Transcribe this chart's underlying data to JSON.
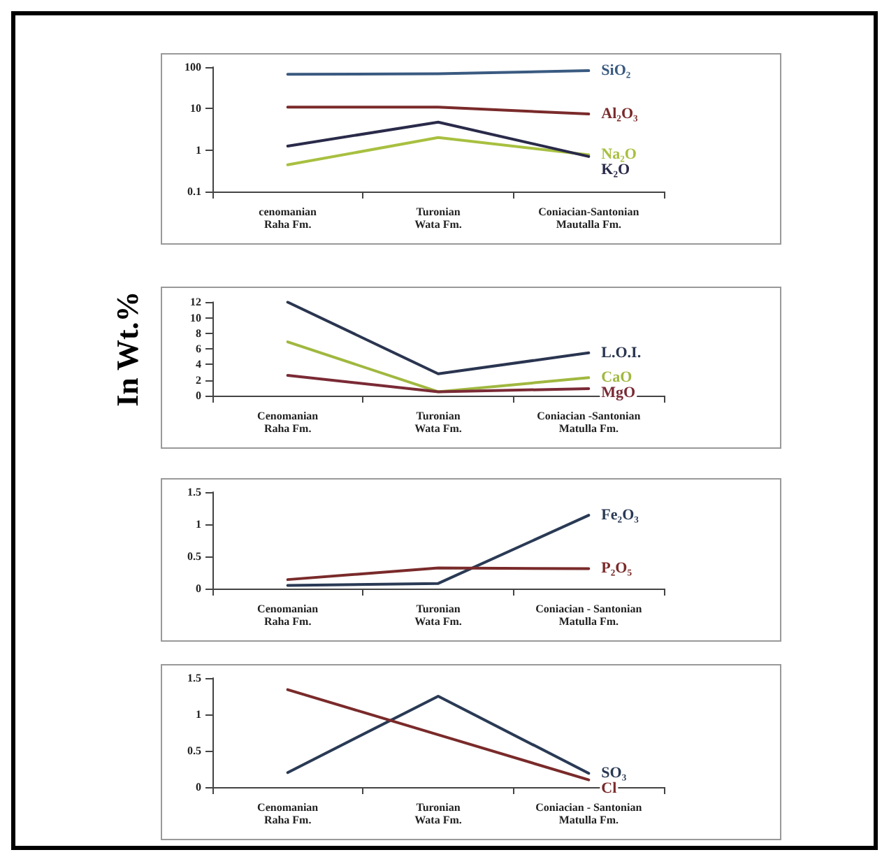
{
  "chart_data": [
    {
      "type": "line",
      "categories": [
        "cenomanian\nRaha Fm.",
        "Turonian\nWata Fm.",
        "Coniacian-Santonian\nMautalla Fm."
      ],
      "log": "y",
      "ylim": [
        0.1,
        100
      ],
      "yticks": [
        0.1,
        1,
        10,
        100
      ],
      "grid": false,
      "legend": false,
      "marker": "none",
      "line_style": "solid",
      "series": [
        {
          "name": "SiO₂",
          "color": "#3a5a80",
          "values": [
            67,
            69,
            82
          ]
        },
        {
          "name": "Al₂O₃",
          "color": "#7a2a2a",
          "values": [
            10.8,
            10.8,
            7.4
          ]
        },
        {
          "name": "Na₂O",
          "color": "#a8c040",
          "values": [
            0.44,
            2.0,
            0.77
          ]
        },
        {
          "name": "K₂O",
          "color": "#2a2a4a",
          "values": [
            1.25,
            4.7,
            0.7
          ]
        }
      ]
    },
    {
      "type": "line",
      "ylabel": "In Wt.%",
      "categories": [
        "Cenomanian\nRaha Fm.",
        "Turonian\nWata Fm.",
        "Coniacian -Santonian\nMatulla Fm."
      ],
      "ylim": [
        0,
        12
      ],
      "yticks": [
        0,
        2,
        4,
        6,
        8,
        10,
        12
      ],
      "grid": false,
      "legend": false,
      "marker": "none",
      "line_style": "solid",
      "series": [
        {
          "name": "L.O.I.",
          "color": "#2a3550",
          "values": [
            12,
            2.8,
            5.5
          ]
        },
        {
          "name": "CaO",
          "color": "#a0b840",
          "values": [
            6.9,
            0.5,
            2.3
          ]
        },
        {
          "name": "MgO",
          "color": "#7a2a35",
          "values": [
            2.6,
            0.5,
            0.9
          ]
        }
      ]
    },
    {
      "type": "line",
      "categories": [
        "Cenomanian\nRaha Fm.",
        "Turonian\nWata Fm.",
        "Coniacian - Santonian\nMatulla Fm."
      ],
      "ylim": [
        0,
        1.5
      ],
      "yticks": [
        0,
        0.5,
        1,
        1.5
      ],
      "grid": false,
      "legend": false,
      "marker": "none",
      "line_style": "solid",
      "series": [
        {
          "name": "Fe₂O₃",
          "color": "#2a3a55",
          "values": [
            0.05,
            0.08,
            1.14
          ]
        },
        {
          "name": "P₂O₅",
          "color": "#7a2a2a",
          "values": [
            0.14,
            0.32,
            0.31
          ]
        }
      ]
    },
    {
      "type": "line",
      "categories": [
        "Cenomanian\nRaha Fm.",
        "Turonian\nWata Fm.",
        "Coniacian - Santonian\nMatulla Fm."
      ],
      "ylim": [
        0,
        1.5
      ],
      "yticks": [
        0,
        0.5,
        1,
        1.5
      ],
      "grid": false,
      "legend": false,
      "marker": "none",
      "line_style": "solid",
      "series": [
        {
          "name": "SO₃",
          "color": "#2a3a55",
          "values": [
            0.2,
            1.25,
            0.19
          ]
        },
        {
          "name": "Cl",
          "color": "#7a2a2a",
          "values": [
            1.34,
            0.72,
            0.1
          ]
        }
      ]
    }
  ]
}
